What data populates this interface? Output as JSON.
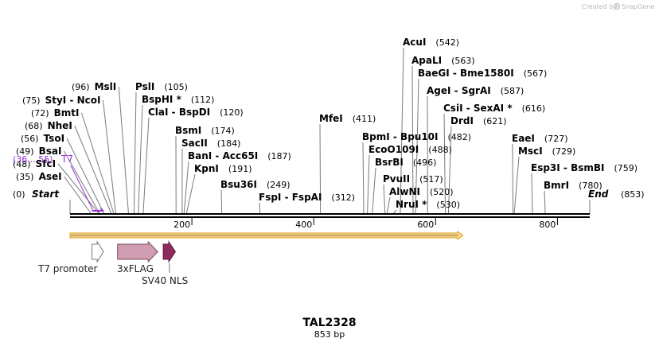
{
  "credit": {
    "prefix": "Created by",
    "brand": "SnapGene"
  },
  "plasmid": {
    "name": "TAL2328",
    "length_label": "853 bp",
    "length": 853
  },
  "primer": {
    "range_label": "(36 .. 55)",
    "name": "T7",
    "start": 36,
    "end": 55
  },
  "ends": {
    "start": {
      "pos_label": "(0)",
      "name": "Start"
    },
    "end": {
      "name": "End",
      "pos_label": "(853)"
    }
  },
  "sites": [
    {
      "id": "asei",
      "label": "AseI",
      "pos": "(35)",
      "bp": 35,
      "pos_first": true
    },
    {
      "id": "sfci",
      "label": "SfcI",
      "pos": "(48)",
      "bp": 48,
      "pos_first": true
    },
    {
      "id": "bsai",
      "label": "BsaI",
      "pos": "(49)",
      "bp": 49,
      "pos_first": true
    },
    {
      "id": "tsoi",
      "label": "TsoI",
      "pos": "(56)",
      "bp": 56,
      "pos_first": true
    },
    {
      "id": "nhei",
      "label": "NheI",
      "pos": "(68)",
      "bp": 68,
      "pos_first": true
    },
    {
      "id": "bmti",
      "label": "BmtI",
      "pos": "(72)",
      "bp": 72,
      "pos_first": true
    },
    {
      "id": "styi-ncoi",
      "label": "StyI  -  NcoI",
      "pos": "(75)",
      "bp": 75,
      "pos_first": true
    },
    {
      "id": "msli",
      "label": "MslI",
      "pos": "(96)",
      "bp": 96,
      "pos_first": true
    },
    {
      "id": "psli",
      "label": "PslI",
      "pos": "(105)",
      "bp": 105,
      "pos_first": false
    },
    {
      "id": "bsphi",
      "label": "BspHI *",
      "pos": "(112)",
      "bp": 112,
      "pos_first": false
    },
    {
      "id": "clai-bspdi",
      "label": "ClaI  -  BspDI",
      "pos": "(120)",
      "bp": 120,
      "pos_first": false
    },
    {
      "id": "bsmi",
      "label": "BsmI",
      "pos": "(174)",
      "bp": 174,
      "pos_first": false
    },
    {
      "id": "sacii",
      "label": "SacII",
      "pos": "(184)",
      "bp": 184,
      "pos_first": false
    },
    {
      "id": "bani-acc65i",
      "label": "BanI  -  Acc65I",
      "pos": "(187)",
      "bp": 187,
      "pos_first": false
    },
    {
      "id": "kpni",
      "label": "KpnI",
      "pos": "(191)",
      "bp": 191,
      "pos_first": false
    },
    {
      "id": "bsu36i",
      "label": "Bsu36I",
      "pos": "(249)",
      "bp": 249,
      "pos_first": false
    },
    {
      "id": "fspi-fspai",
      "label": "FspI  -  FspAI",
      "pos": "(312)",
      "bp": 312,
      "pos_first": false
    },
    {
      "id": "mfei",
      "label": "MfeI",
      "pos": "(411)",
      "bp": 411,
      "pos_first": false
    },
    {
      "id": "bpmi-bpu10i",
      "label": "BpmI  -  Bpu10I",
      "pos": "(482)",
      "bp": 482,
      "pos_first": false
    },
    {
      "id": "ecoo109i",
      "label": "EcoO109I",
      "pos": "(488)",
      "bp": 488,
      "pos_first": false
    },
    {
      "id": "bsrbi",
      "label": "BsrBI",
      "pos": "(496)",
      "bp": 496,
      "pos_first": false
    },
    {
      "id": "pvuii",
      "label": "PvuII",
      "pos": "(517)",
      "bp": 517,
      "pos_first": false
    },
    {
      "id": "alwni",
      "label": "AlwNI",
      "pos": "(520)",
      "bp": 520,
      "pos_first": false
    },
    {
      "id": "nrui",
      "label": "NruI *",
      "pos": "(530)",
      "bp": 530,
      "pos_first": false
    },
    {
      "id": "acui",
      "label": "AcuI",
      "pos": "(542)",
      "bp": 542,
      "pos_first": false
    },
    {
      "id": "apali",
      "label": "ApaLI",
      "pos": "(563)",
      "bp": 563,
      "pos_first": false
    },
    {
      "id": "baegi-bme1580i",
      "label": "BaeGI  -  Bme1580I",
      "pos": "(567)",
      "bp": 567,
      "pos_first": false
    },
    {
      "id": "agei-sgrai",
      "label": "AgeI  -  SgrAI",
      "pos": "(587)",
      "bp": 587,
      "pos_first": false
    },
    {
      "id": "csii-sexai",
      "label": "CsiI  -  SexAI *",
      "pos": "(616)",
      "bp": 616,
      "pos_first": false
    },
    {
      "id": "drdi",
      "label": "DrdI",
      "pos": "(621)",
      "bp": 621,
      "pos_first": false
    },
    {
      "id": "eaei",
      "label": "EaeI",
      "pos": "(727)",
      "bp": 727,
      "pos_first": false
    },
    {
      "id": "msci",
      "label": "MscI",
      "pos": "(729)",
      "bp": 729,
      "pos_first": false
    },
    {
      "id": "esp3i-bsmbi",
      "label": "Esp3I  -  BsmBI",
      "pos": "(759)",
      "bp": 759,
      "pos_first": false
    },
    {
      "id": "bmri",
      "label": "BmrI",
      "pos": "(780)",
      "bp": 780,
      "pos_first": false
    }
  ],
  "ticks": [
    {
      "bp": 200,
      "label": "200"
    },
    {
      "bp": 400,
      "label": "400"
    },
    {
      "bp": 600,
      "label": "600"
    },
    {
      "bp": 800,
      "label": "800"
    }
  ],
  "features": [
    {
      "id": "t7-promoter",
      "label": "T7 promoter",
      "start": 36,
      "end": 55,
      "color": "#ffffff",
      "stroke": "#777777"
    },
    {
      "id": "3xflag",
      "label": "3xFLAG",
      "start": 78,
      "end": 144,
      "color": "#cf9cb2",
      "stroke": "#7d4c62"
    },
    {
      "id": "sv40-nls",
      "label": "SV40 NLS",
      "start": 153,
      "end": 173,
      "color": "#8e2a5c",
      "stroke": "#5c1539"
    }
  ],
  "orf": {
    "start": 0,
    "end": 645,
    "fill": "#f5d891",
    "stroke": "#e0a020",
    "line": "#8c6a2c"
  },
  "colors": {
    "primer": "#9b30d9",
    "backbone": "#000000",
    "site_line": "#7a7a7a"
  }
}
